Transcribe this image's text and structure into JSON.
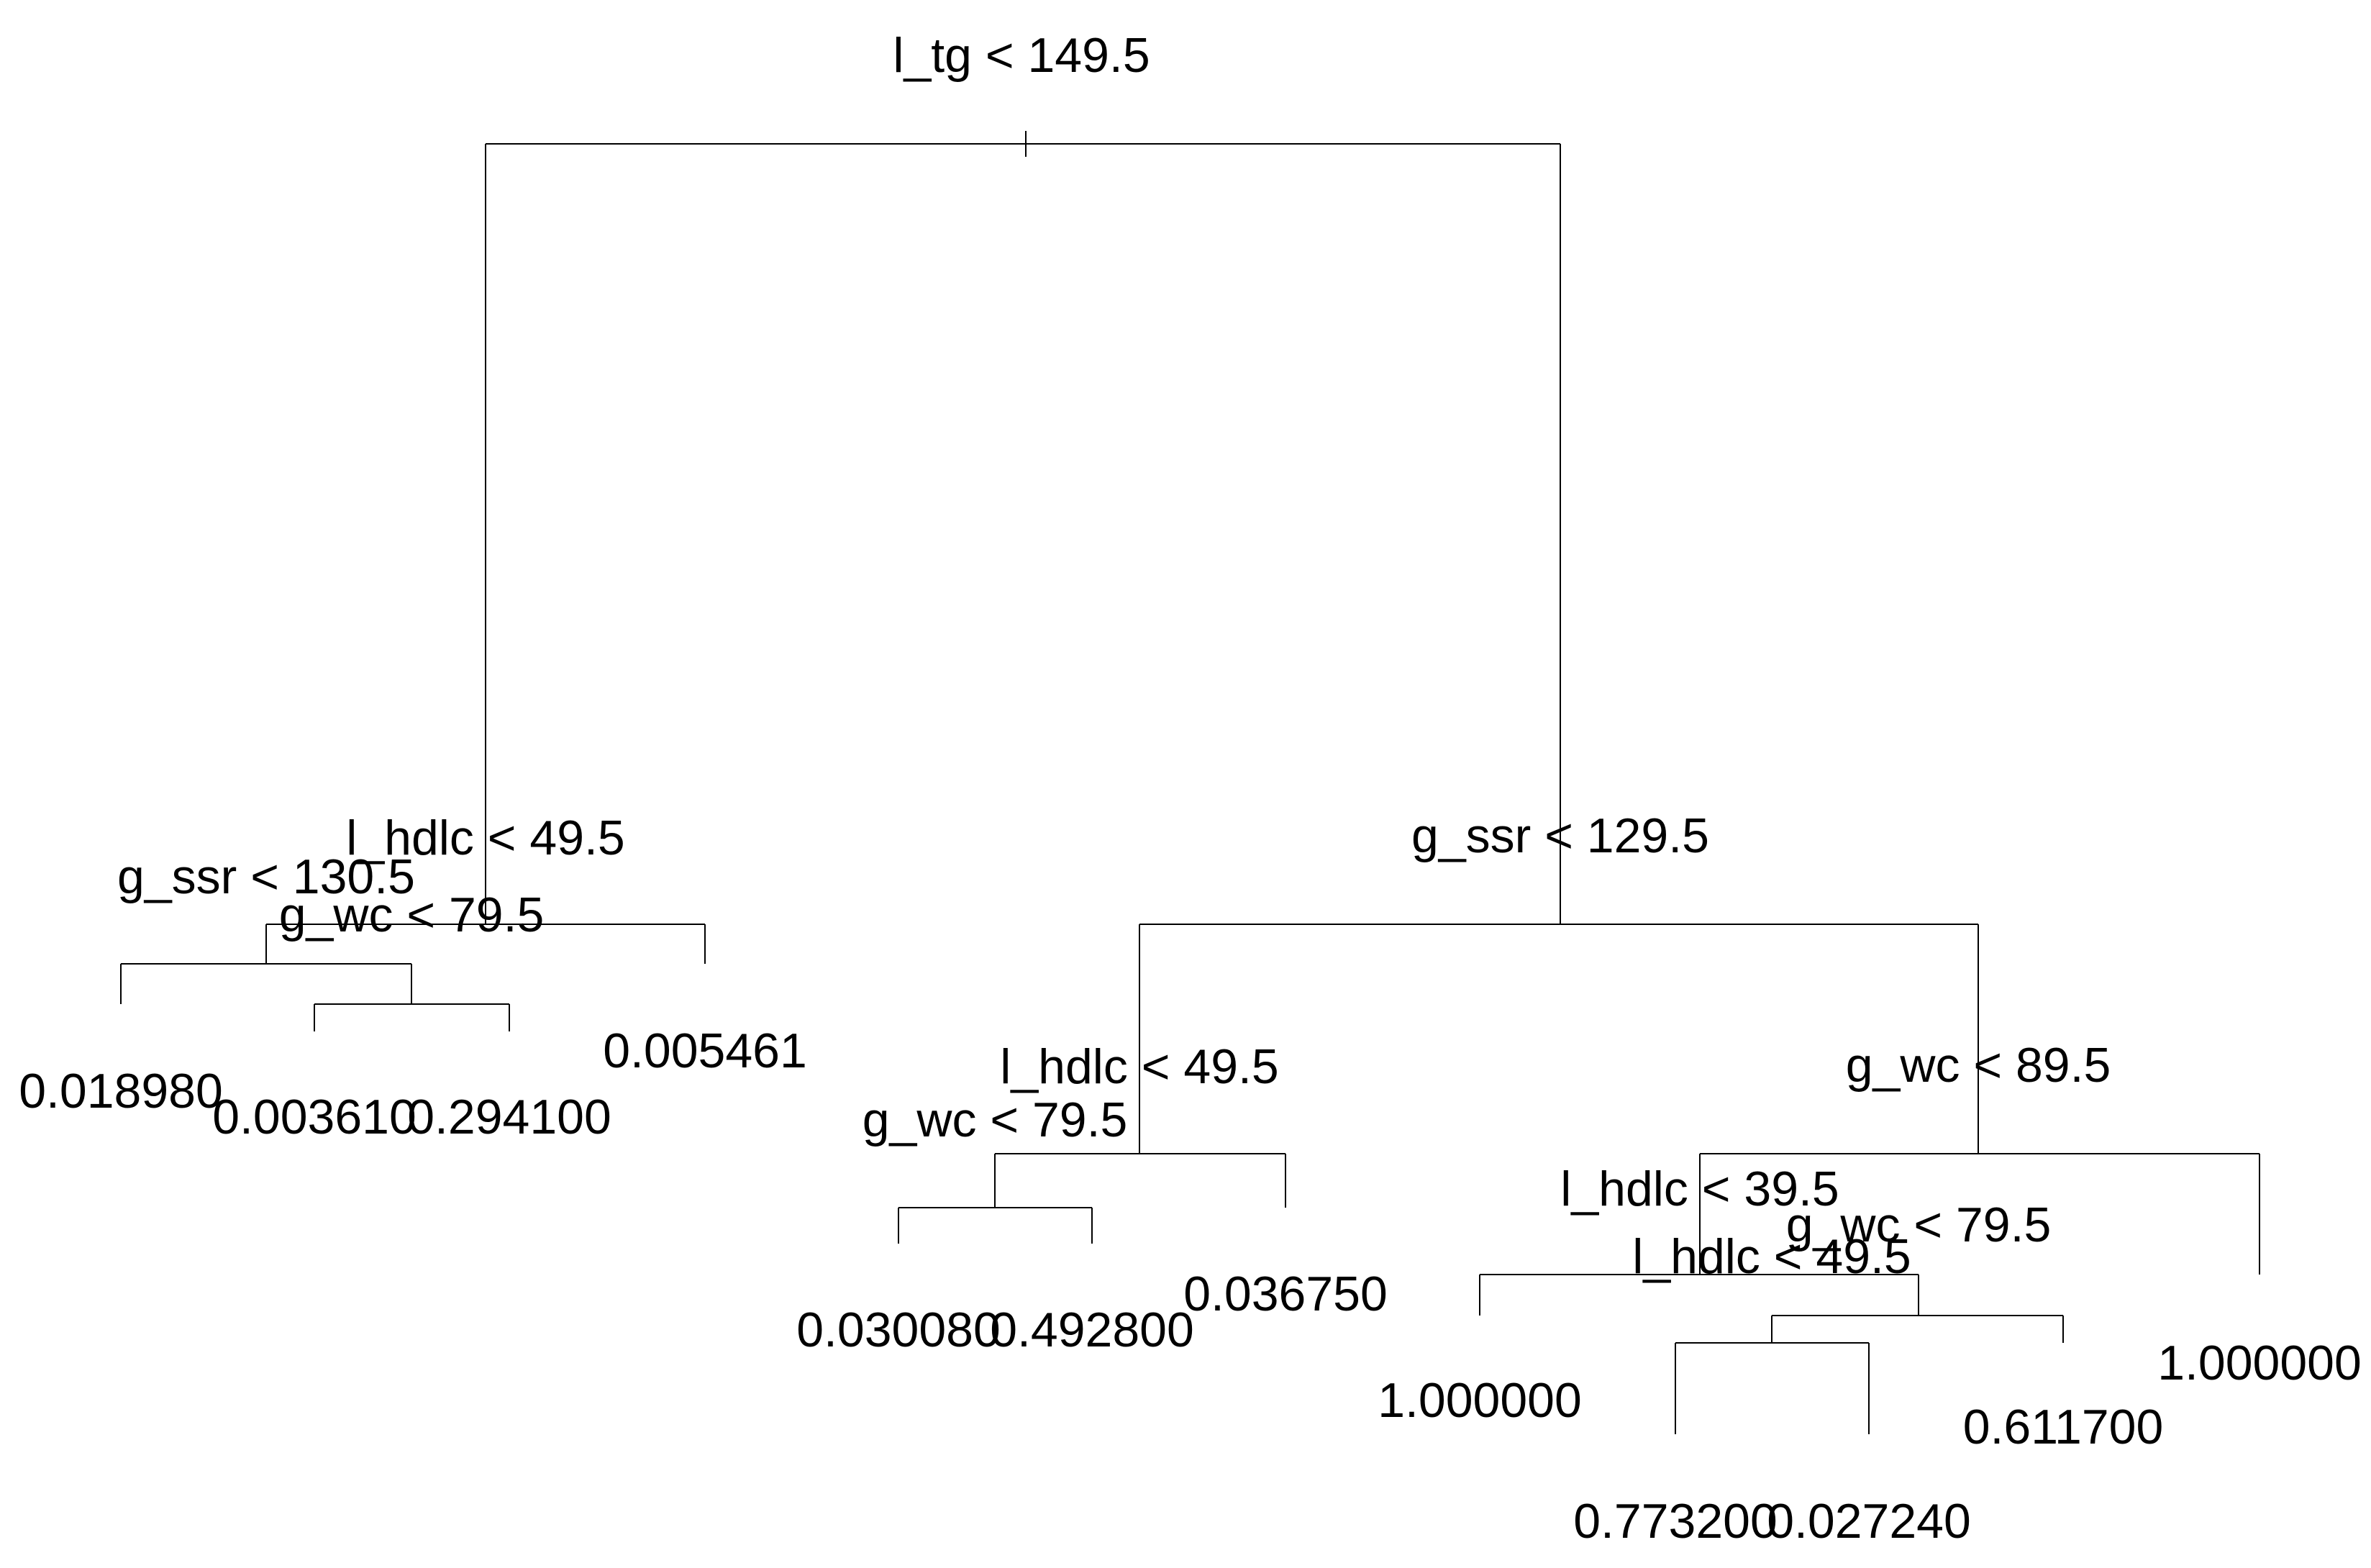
{
  "tree": {
    "splits": [
      {
        "id": "root",
        "label": "l_tg < 149.5"
      },
      {
        "id": "n2",
        "label": "l_hdlc < 49.5"
      },
      {
        "id": "n4",
        "label": "g_ssr < 130.5"
      },
      {
        "id": "n9",
        "label": "g_wc < 79.5"
      },
      {
        "id": "n3",
        "label": "g_ssr < 129.5"
      },
      {
        "id": "n6",
        "label": "l_hdlc < 49.5"
      },
      {
        "id": "n12",
        "label": "g_wc < 79.5"
      },
      {
        "id": "n7",
        "label": "g_wc < 89.5"
      },
      {
        "id": "n14",
        "label": "l_hdlc < 39.5"
      },
      {
        "id": "n29",
        "label": "g_wc < 79.5"
      },
      {
        "id": "n58",
        "label": "l_hdlc < 49.5"
      }
    ],
    "leaves": [
      {
        "id": "L8",
        "value": "0.018980"
      },
      {
        "id": "L18",
        "value": "0.003610"
      },
      {
        "id": "L19",
        "value": "0.294100"
      },
      {
        "id": "L5",
        "value": "0.005461"
      },
      {
        "id": "L24",
        "value": "0.030080"
      },
      {
        "id": "L25",
        "value": "0.492800"
      },
      {
        "id": "L13",
        "value": "0.036750"
      },
      {
        "id": "L28",
        "value": "1.000000"
      },
      {
        "id": "L116",
        "value": "0.773200"
      },
      {
        "id": "L117",
        "value": "0.027240"
      },
      {
        "id": "L59",
        "value": "0.611700"
      },
      {
        "id": "L15",
        "value": "1.000000"
      }
    ]
  }
}
